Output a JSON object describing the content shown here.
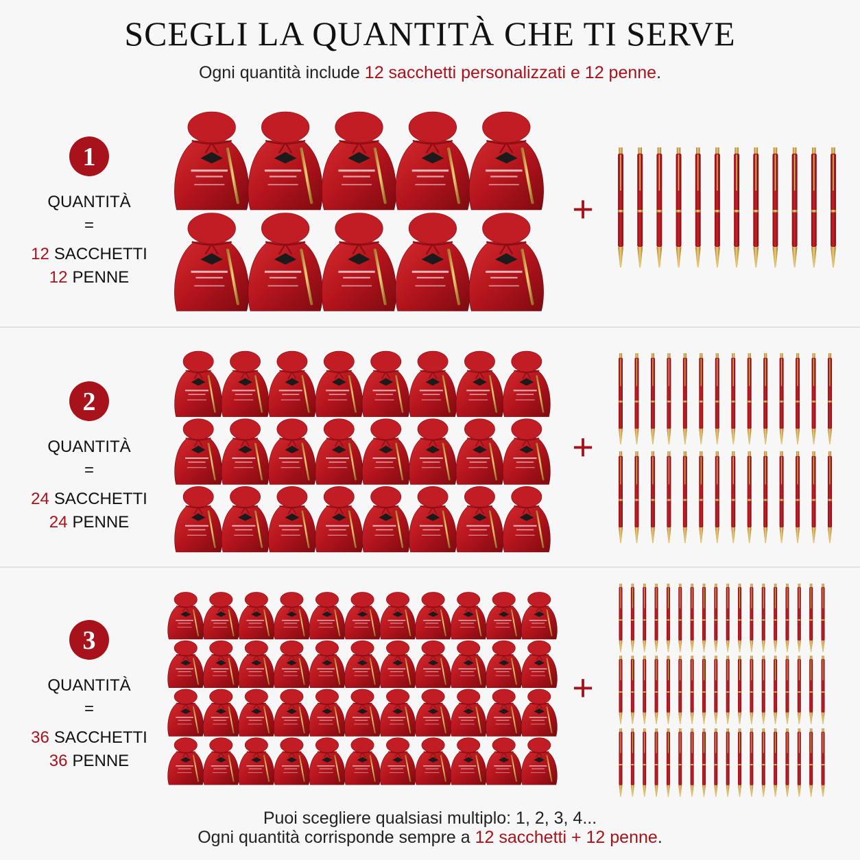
{
  "header": {
    "title": "SCEGLI LA QUANTITÀ CHE TI SERVE",
    "subtitle": {
      "before": "Ogni quantità include ",
      "highlight": "12 sacchetti personalizzati e 12 penne",
      "after": "."
    }
  },
  "options": [
    {
      "number": "1",
      "label": "QUANTITÀ",
      "equals": "=",
      "bags_qty": "12",
      "bags_unit": "SACCHETTI",
      "pens_qty": "12",
      "pens_unit": "PENNE",
      "plus": "+"
    },
    {
      "number": "2",
      "label": "QUANTITÀ",
      "equals": "=",
      "bags_qty": "24",
      "bags_unit": "SACCHETTI",
      "pens_qty": "24",
      "pens_unit": "PENNE",
      "plus": "+"
    },
    {
      "number": "3",
      "label": "QUANTITÀ",
      "equals": "=",
      "bags_qty": "36",
      "bags_unit": "SACCHETTI",
      "pens_qty": "36",
      "pens_unit": "PENNE",
      "plus": "+"
    }
  ],
  "footer": {
    "line1": "Puoi scegliere qualsiasi multiplo: 1, 2, 3, 4...",
    "line2": {
      "before": "Ogni quantità corrisponde sempre a ",
      "highlight": "12 sacchetti + 12 penne",
      "after": "."
    }
  }
}
